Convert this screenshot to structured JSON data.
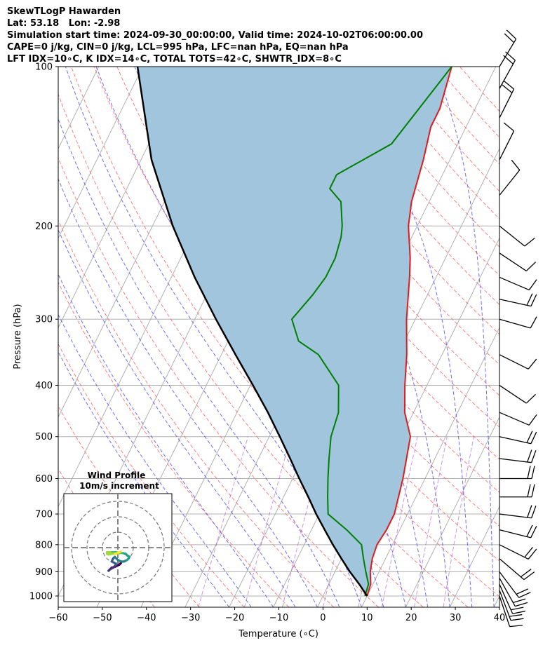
{
  "header": {
    "title": "SkewTLogP Hawarden",
    "location": "Lat: 53.18   Lon: -2.98",
    "times": "Simulation start time: 2024-09-30_00:00:00, Valid time: 2024-10-02T06:00:00.00",
    "indices1": "CAPE=0 j/kg, CIN=0 j/kg, LCL=995 hPa, LFC=nan hPa, EQ=nan hPa",
    "indices2": "LFT IDX=10∘C, K IDX=14∘C, TOTAL TOTS=42∘C, SHWTR_IDX=8∘C"
  },
  "chart_data": {
    "type": "skewt-logp",
    "xlabel": "Temperature (∘C)",
    "ylabel": "Pressure (hPa)",
    "xlim": [
      -60,
      40
    ],
    "ylim": [
      1050,
      100
    ],
    "x_ticks": [
      "−60",
      "−50",
      "−40",
      "−30",
      "−20",
      "−10",
      "0",
      "10",
      "20",
      "30",
      "40"
    ],
    "y_ticks": [
      100,
      200,
      300,
      400,
      500,
      600,
      700,
      800,
      900,
      1000
    ],
    "grid": true,
    "series": [
      {
        "role": "temperature",
        "color": "#e41a1c",
        "points": [
          [
            10,
            1000
          ],
          [
            9.5,
            950
          ],
          [
            8,
            900
          ],
          [
            7,
            850
          ],
          [
            6.5,
            800
          ],
          [
            7,
            750
          ],
          [
            7,
            700
          ],
          [
            5,
            600
          ],
          [
            2,
            500
          ],
          [
            -2,
            450
          ],
          [
            -5,
            400
          ],
          [
            -8,
            350
          ],
          [
            -12,
            300
          ],
          [
            -16,
            250
          ],
          [
            -18,
            230
          ],
          [
            -22,
            200
          ],
          [
            -24,
            180
          ],
          [
            -26,
            150
          ],
          [
            -28,
            130
          ],
          [
            -28,
            120
          ],
          [
            -30,
            100
          ]
        ]
      },
      {
        "role": "dewpoint",
        "color": "#008000",
        "points": [
          [
            9.5,
            1000
          ],
          [
            9,
            950
          ],
          [
            7,
            900
          ],
          [
            5,
            850
          ],
          [
            3,
            800
          ],
          [
            -2,
            750
          ],
          [
            -8,
            700
          ],
          [
            -10,
            650
          ],
          [
            -12,
            600
          ],
          [
            -14,
            550
          ],
          [
            -16,
            500
          ],
          [
            -17,
            450
          ],
          [
            -20,
            400
          ],
          [
            -28,
            350
          ],
          [
            -34,
            330
          ],
          [
            -38,
            300
          ],
          [
            -36,
            270
          ],
          [
            -35,
            250
          ],
          [
            -35,
            230
          ],
          [
            -36,
            210
          ],
          [
            -37,
            200
          ],
          [
            -40,
            180
          ],
          [
            -44,
            170
          ],
          [
            -44,
            160
          ],
          [
            -35,
            140
          ],
          [
            -30,
            100
          ]
        ]
      },
      {
        "role": "parcel",
        "color": "#000000",
        "points": [
          [
            10,
            1000
          ],
          [
            6.9,
            950
          ],
          [
            3.4,
            900
          ],
          [
            0,
            850
          ],
          [
            -3.5,
            800
          ],
          [
            -7,
            750
          ],
          [
            -10.7,
            700
          ],
          [
            -14.4,
            650
          ],
          [
            -18.5,
            600
          ],
          [
            -22.8,
            550
          ],
          [
            -27.6,
            500
          ],
          [
            -33,
            450
          ],
          [
            -39.4,
            400
          ],
          [
            -46.8,
            350
          ],
          [
            -55.2,
            300
          ],
          [
            -64.7,
            250
          ],
          [
            -75.4,
            200
          ],
          [
            -87.6,
            150
          ],
          [
            -101.2,
            100
          ]
        ]
      }
    ],
    "wind_barbs": [
      {
        "p": 1000,
        "u": -2,
        "v": 6
      },
      {
        "p": 975,
        "u": -3,
        "v": 8
      },
      {
        "p": 950,
        "u": -4,
        "v": 9
      },
      {
        "p": 925,
        "u": -5,
        "v": 9
      },
      {
        "p": 900,
        "u": -6,
        "v": 8
      },
      {
        "p": 850,
        "u": -7,
        "v": 6
      },
      {
        "p": 800,
        "u": -8,
        "v": 4
      },
      {
        "p": 750,
        "u": -8,
        "v": 2
      },
      {
        "p": 700,
        "u": -8,
        "v": 1
      },
      {
        "p": 650,
        "u": -8,
        "v": 0
      },
      {
        "p": 600,
        "u": -8,
        "v": 0
      },
      {
        "p": 550,
        "u": -8,
        "v": 1
      },
      {
        "p": 500,
        "u": -9,
        "v": 2
      },
      {
        "p": 450,
        "u": -7,
        "v": 3
      },
      {
        "p": 400,
        "u": -6,
        "v": 4
      },
      {
        "p": 350,
        "u": -6,
        "v": 3
      },
      {
        "p": 300,
        "u": -7,
        "v": 2
      },
      {
        "p": 275,
        "u": -9,
        "v": 2
      },
      {
        "p": 250,
        "u": -7,
        "v": 3
      },
      {
        "p": 225,
        "u": -6,
        "v": 4
      },
      {
        "p": 200,
        "u": -5,
        "v": 4
      },
      {
        "p": 175,
        "u": -4,
        "v": -5
      },
      {
        "p": 150,
        "u": -3,
        "v": -6
      },
      {
        "p": 125,
        "u": -4,
        "v": -8
      },
      {
        "p": 110,
        "u": -5,
        "v": -9
      },
      {
        "p": 100,
        "u": -6,
        "v": -10
      }
    ],
    "inset": {
      "title": "Wind Profile",
      "subtitle": "10m/s increment",
      "rings": [
        10,
        20,
        30
      ],
      "hodograph": [
        [
          2,
          -10
        ],
        [
          1,
          -11
        ],
        [
          -1,
          -12
        ],
        [
          -2,
          -12.5
        ],
        [
          -4,
          -13
        ],
        [
          -5,
          -14
        ],
        [
          -6,
          -15
        ],
        [
          -5,
          -14
        ],
        [
          -3,
          -13
        ],
        [
          -2,
          -12
        ],
        [
          -1,
          -11
        ],
        [
          -2,
          -10
        ],
        [
          -4,
          -9
        ],
        [
          -3,
          -7
        ],
        [
          -2,
          -6
        ],
        [
          -1,
          -7
        ],
        [
          0,
          -8
        ],
        [
          2,
          -9
        ],
        [
          4,
          -9
        ],
        [
          6,
          -8
        ],
        [
          7,
          -7
        ],
        [
          7.5,
          -6
        ],
        [
          6,
          -5
        ],
        [
          5,
          -4
        ],
        [
          3,
          -3.5
        ],
        [
          1,
          -3.5
        ],
        [
          -1,
          -3
        ],
        [
          -3,
          -3
        ],
        [
          -5,
          -3
        ],
        [
          -7,
          -3
        ],
        [
          -7,
          -4
        ],
        [
          -6,
          -4.5
        ],
        [
          -4,
          -4
        ],
        [
          -2,
          -4
        ],
        [
          0,
          -3.5
        ],
        [
          1,
          -3
        ],
        [
          2,
          -2.5
        ]
      ]
    },
    "colors": {
      "shade": "#a2c5de",
      "temperature": "#e41a1c",
      "dewpoint": "#008000",
      "parcel": "#000000",
      "dry_adiabat": "#ff6a6a",
      "moist_adiabat": "#4a4aff",
      "mixing_ratio": "#7a7aff",
      "isotherm": "#b0b0b0"
    }
  }
}
